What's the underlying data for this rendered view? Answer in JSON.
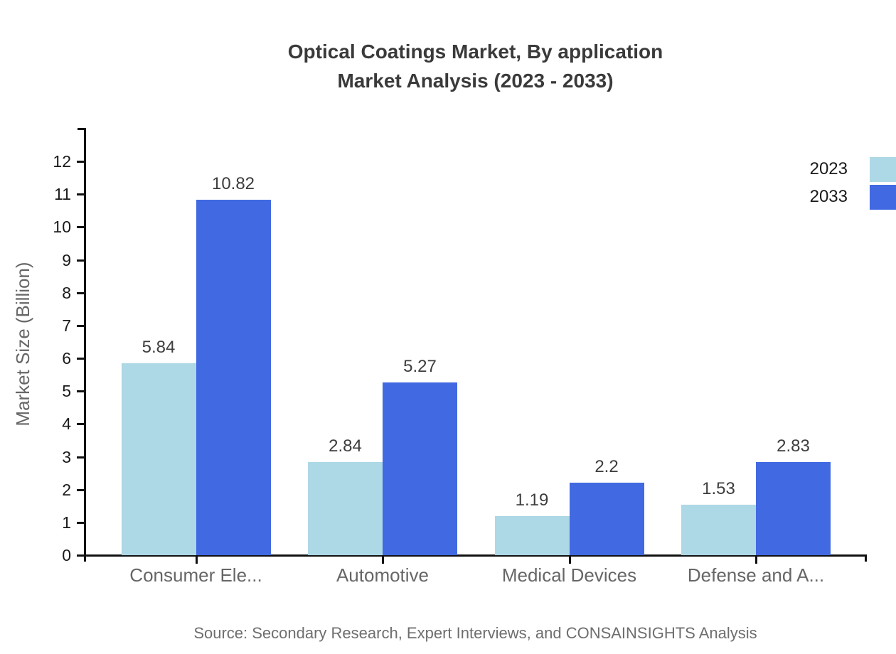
{
  "title": {
    "line1": "Optical Coatings Market, By application",
    "line2": "Market Analysis (2023 - 2033)"
  },
  "source": "Source: Secondary Research, Expert Interviews, and CONSAINSIGHTS Analysis",
  "colors": {
    "series_2023": "#add8e6",
    "series_2033": "#4169e1",
    "axis": "#111111",
    "title_text": "#3a3a3a",
    "category_text": "#666666",
    "value_text": "#3d3d3d",
    "source_text": "#6e6e6e"
  },
  "chart_data": {
    "type": "bar",
    "title": "Optical Coatings Market, By application Market Analysis (2023 - 2033)",
    "categories": [
      "Consumer Ele...",
      "Automotive",
      "Medical Devices",
      "Defense and A..."
    ],
    "series": [
      {
        "name": "2023",
        "color": "#add8e6",
        "values": [
          5.84,
          2.84,
          1.19,
          1.53
        ]
      },
      {
        "name": "2033",
        "color": "#4169e1",
        "values": [
          10.82,
          5.27,
          2.2,
          2.83
        ]
      }
    ],
    "xlabel": "",
    "ylabel": "Market Size (Billion)",
    "ylim": [
      0,
      12
    ],
    "ytick_step": 1,
    "grid": false,
    "legend_position": "top-right",
    "value_labels_shown": true
  }
}
